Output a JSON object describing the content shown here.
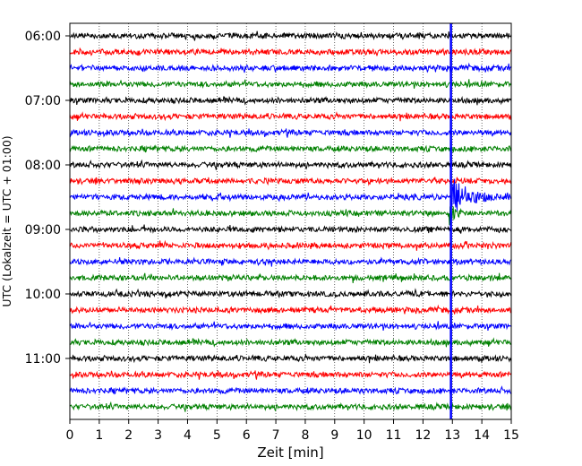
{
  "chart_data": {
    "type": "line",
    "xlabel": "Zeit  [min]",
    "ylabel": "UTC (Lokalzeit = UTC + 01:00)",
    "xlim": [
      0,
      15
    ],
    "x_ticks": [
      "0",
      "1",
      "2",
      "3",
      "4",
      "5",
      "6",
      "7",
      "8",
      "9",
      "10",
      "11",
      "12",
      "13",
      "14",
      "15"
    ],
    "y_ticks": [
      "06:00",
      "07:00",
      "08:00",
      "09:00",
      "10:00",
      "11:00"
    ],
    "grid": "vertical dotted",
    "colors": {
      "black": "#000000",
      "red": "#ff0000",
      "blue": "#0000ff",
      "green": "#008000",
      "marker": "#0000ff"
    },
    "rows": [
      {
        "start": "06:00",
        "color": "black"
      },
      {
        "start": "06:15",
        "color": "red"
      },
      {
        "start": "06:30",
        "color": "blue"
      },
      {
        "start": "06:45",
        "color": "green"
      },
      {
        "start": "07:00",
        "color": "black"
      },
      {
        "start": "07:15",
        "color": "red"
      },
      {
        "start": "07:30",
        "color": "blue"
      },
      {
        "start": "07:45",
        "color": "green"
      },
      {
        "start": "08:00",
        "color": "black"
      },
      {
        "start": "08:15",
        "color": "red"
      },
      {
        "start": "08:30",
        "color": "blue"
      },
      {
        "start": "08:45",
        "color": "green"
      },
      {
        "start": "09:00",
        "color": "black"
      },
      {
        "start": "09:15",
        "color": "red"
      },
      {
        "start": "09:30",
        "color": "blue"
      },
      {
        "start": "09:45",
        "color": "green"
      },
      {
        "start": "10:00",
        "color": "black"
      },
      {
        "start": "10:15",
        "color": "red"
      },
      {
        "start": "10:30",
        "color": "blue"
      },
      {
        "start": "10:45",
        "color": "green"
      },
      {
        "start": "11:00",
        "color": "black"
      },
      {
        "start": "11:15",
        "color": "red"
      },
      {
        "start": "11:30",
        "color": "blue"
      },
      {
        "start": "11:45",
        "color": "green"
      }
    ],
    "event_marker_minute": 12.95,
    "event": {
      "row_start": "08:30",
      "minute": 12.95,
      "peak_row_count": 1.6
    }
  }
}
